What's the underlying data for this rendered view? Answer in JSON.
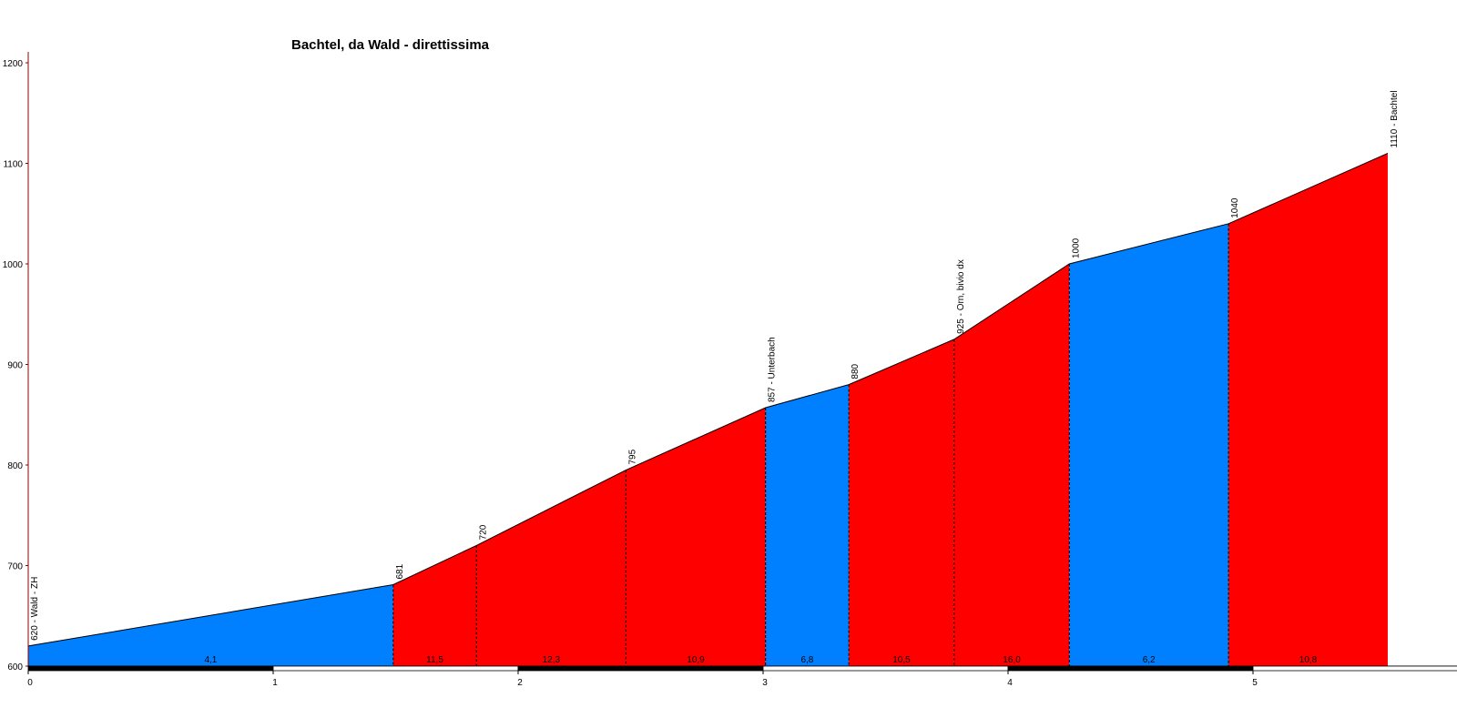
{
  "chart_data": {
    "type": "area",
    "title": "Bachtel, da Wald - direttissima",
    "xlabel": "",
    "ylabel": "",
    "xlim": [
      0,
      5.95
    ],
    "ylim": [
      600,
      1200
    ],
    "yticks": [
      "600",
      "700",
      "800",
      "900",
      "1000",
      "1100",
      "1200"
    ],
    "xticks": [
      "0",
      "1",
      "2",
      "3",
      "4",
      "5"
    ],
    "colors": {
      "uphill": "#ff0000",
      "moderate": "#0080ff",
      "axis": "#8b0000",
      "outline": "#000000"
    },
    "points": [
      {
        "km": 0.0,
        "alt": 620,
        "label": "620 - Wald - ZH"
      },
      {
        "km": 1.49,
        "alt": 681,
        "label": "681"
      },
      {
        "km": 1.83,
        "alt": 720,
        "label": "720"
      },
      {
        "km": 2.44,
        "alt": 795,
        "label": "795"
      },
      {
        "km": 3.01,
        "alt": 857,
        "label": "857 - Unterbach"
      },
      {
        "km": 3.35,
        "alt": 880,
        "label": "880"
      },
      {
        "km": 3.78,
        "alt": 925,
        "label": "925 - Orn, bivio dx"
      },
      {
        "km": 4.25,
        "alt": 1000,
        "label": "1000"
      },
      {
        "km": 4.9,
        "alt": 1040,
        "label": "1040"
      },
      {
        "km": 5.55,
        "alt": 1110,
        "label": "1110 - Bachtel"
      }
    ],
    "segments": [
      {
        "gradient": "4,1",
        "color": "moderate"
      },
      {
        "gradient": "11,5",
        "color": "uphill"
      },
      {
        "gradient": "12,3",
        "color": "uphill"
      },
      {
        "gradient": "10,9",
        "color": "uphill"
      },
      {
        "gradient": "6,8",
        "color": "moderate"
      },
      {
        "gradient": "10,5",
        "color": "uphill"
      },
      {
        "gradient": "16,0",
        "color": "uphill"
      },
      {
        "gradient": "6,2",
        "color": "moderate"
      },
      {
        "gradient": "10,8",
        "color": "uphill"
      }
    ]
  }
}
